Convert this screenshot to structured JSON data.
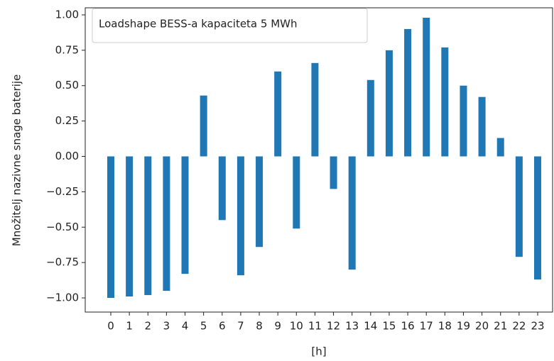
{
  "chart_data": {
    "type": "bar",
    "xlabel": "[h]",
    "ylabel": "Množitelj nazivne snage baterije",
    "categories": [
      "0",
      "1",
      "2",
      "3",
      "4",
      "5",
      "6",
      "7",
      "8",
      "9",
      "10",
      "11",
      "12",
      "13",
      "14",
      "15",
      "16",
      "17",
      "18",
      "19",
      "20",
      "21",
      "22",
      "23"
    ],
    "series": [
      {
        "name": "Loadshape BESS-a kapaciteta 5 MWh",
        "color": "#1f77b4",
        "values": [
          -1.0,
          -0.99,
          -0.98,
          -0.95,
          -0.83,
          0.43,
          -0.45,
          -0.84,
          -0.64,
          0.6,
          -0.51,
          0.66,
          -0.23,
          -0.8,
          0.54,
          0.75,
          0.9,
          0.98,
          0.77,
          0.5,
          0.42,
          0.13,
          -0.71,
          -0.87
        ]
      }
    ],
    "ylim": [
      -1.1,
      1.05
    ],
    "yticks": [
      {
        "value": -1,
        "label": "−1.00"
      },
      {
        "value": -0.75,
        "label": "−0.75"
      },
      {
        "value": -0.5,
        "label": "−0.50"
      },
      {
        "value": -0.25,
        "label": "−0.25"
      },
      {
        "value": 0,
        "label": "0.00"
      },
      {
        "value": 0.25,
        "label": "0.25"
      },
      {
        "value": 0.5,
        "label": "0.50"
      },
      {
        "value": 0.75,
        "label": "0.75"
      },
      {
        "value": 1,
        "label": "1.00"
      }
    ],
    "legend": "upper left",
    "grid": false
  }
}
